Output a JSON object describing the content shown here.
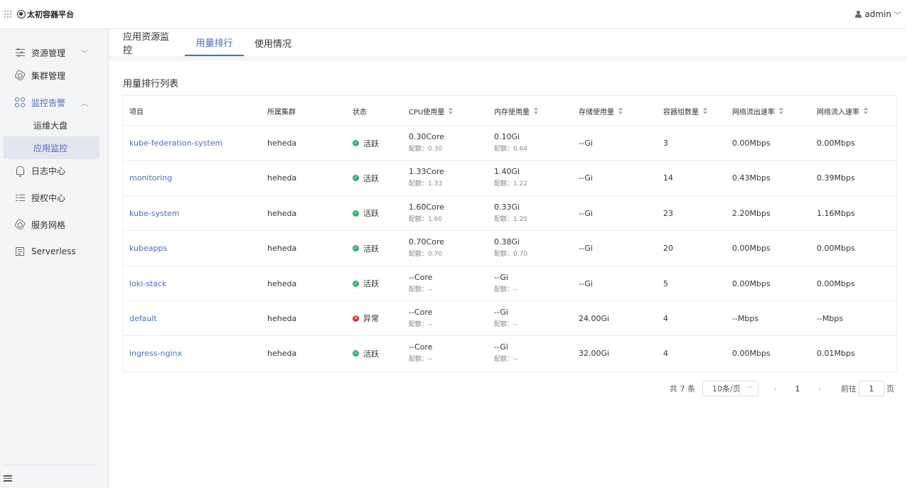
{
  "app": {
    "title": "太初容器平台",
    "user": "admin"
  },
  "sidebar": {
    "items": [
      {
        "label": "资源管理",
        "icon": "sliders-icon",
        "expandable": true
      },
      {
        "label": "集群管理",
        "icon": "hexagon-icon"
      },
      {
        "label": "监控告警",
        "icon": "clover-icon",
        "expandable": true,
        "expanded": true,
        "children": [
          {
            "label": "运维大盘"
          },
          {
            "label": "应用监控",
            "active": true
          }
        ]
      },
      {
        "label": "日志中心",
        "icon": "bell-icon"
      },
      {
        "label": "授权中心",
        "icon": "list-icon"
      },
      {
        "label": "服务网格",
        "icon": "hexagon-icon"
      },
      {
        "label": "Serverless",
        "icon": "doc-icon"
      }
    ]
  },
  "tabs": [
    {
      "label": "应用资源监控"
    },
    {
      "label": "用量排行",
      "active": true
    },
    {
      "label": "使用情况"
    }
  ],
  "section_title": "用量排行列表",
  "table": {
    "columns": [
      "项目",
      "所属集群",
      "状态",
      "CPU使用量",
      "内存使用量",
      "存储使用量",
      "容器组数量",
      "网络流出速率",
      "网络流入速率"
    ],
    "rows": [
      {
        "project": "kube-federation-system",
        "cluster": "heheda",
        "status": "活跃",
        "status_type": "ok",
        "cpu": "0.30Core",
        "cpu_quota": "配额：0.30",
        "mem": "0.10Gi",
        "mem_quota": "配额：0.64",
        "storage": "--Gi",
        "pods": "3",
        "net_out": "0.00Mbps",
        "net_in": "0.00Mbps"
      },
      {
        "project": "monitoring",
        "cluster": "heheda",
        "status": "活跃",
        "status_type": "ok",
        "cpu": "1.33Core",
        "cpu_quota": "配额：1.33",
        "mem": "1.40Gi",
        "mem_quota": "配额：1.22",
        "storage": "--Gi",
        "pods": "14",
        "net_out": "0.43Mbps",
        "net_in": "0.39Mbps"
      },
      {
        "project": "kube-system",
        "cluster": "heheda",
        "status": "活跃",
        "status_type": "ok",
        "cpu": "1.60Core",
        "cpu_quota": "配额：1.60",
        "mem": "0.33Gi",
        "mem_quota": "配额：1.25",
        "storage": "--Gi",
        "pods": "23",
        "net_out": "2.20Mbps",
        "net_in": "1.16Mbps"
      },
      {
        "project": "kubeapps",
        "cluster": "heheda",
        "status": "活跃",
        "status_type": "ok",
        "cpu": "0.70Core",
        "cpu_quota": "配额：0.70",
        "mem": "0.38Gi",
        "mem_quota": "配额：0.70",
        "storage": "--Gi",
        "pods": "20",
        "net_out": "0.00Mbps",
        "net_in": "0.00Mbps"
      },
      {
        "project": "loki-stack",
        "cluster": "heheda",
        "status": "活跃",
        "status_type": "ok",
        "cpu": "--Core",
        "cpu_quota": "配额：--",
        "mem": "--Gi",
        "mem_quota": "配额：--",
        "storage": "--Gi",
        "pods": "5",
        "net_out": "0.00Mbps",
        "net_in": "0.00Mbps"
      },
      {
        "project": "default",
        "cluster": "heheda",
        "status": "异常",
        "status_type": "err",
        "cpu": "--Core",
        "cpu_quota": "配额：--",
        "mem": "--Gi",
        "mem_quota": "配额：--",
        "storage": "24.00Gi",
        "pods": "4",
        "net_out": "--Mbps",
        "net_in": "--Mbps"
      },
      {
        "project": "ingress-nginx",
        "cluster": "heheda",
        "status": "活跃",
        "status_type": "ok",
        "cpu": "--Core",
        "cpu_quota": "配额：--",
        "mem": "--Gi",
        "mem_quota": "配额：--",
        "storage": "32.00Gi",
        "pods": "4",
        "net_out": "0.00Mbps",
        "net_in": "0.01Mbps"
      }
    ]
  },
  "pagination": {
    "total_text": "共 7 条",
    "page_size": "10条/页",
    "current_page": "1",
    "goto_label": "前往",
    "goto_value": "1",
    "page_suffix": "页"
  },
  "colors": {
    "accent": "#4a6cc7",
    "ok": "#2fb171",
    "error": "#d9303a"
  }
}
